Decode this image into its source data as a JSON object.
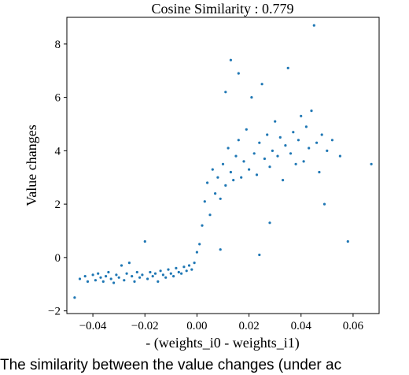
{
  "chart_data": {
    "type": "scatter",
    "title": "Cosine Similarity : 0.779",
    "xlabel": "- (weights_i0 - weights_i1)",
    "ylabel": "Value changes",
    "xlim": [
      -0.05,
      0.07
    ],
    "ylim": [
      -2.1,
      9.0
    ],
    "xticks": [
      -0.04,
      -0.02,
      0.0,
      0.02,
      0.04,
      0.06
    ],
    "xtick_labels": [
      "−0.04",
      "−0.02",
      "0.00",
      "0.02",
      "0.04",
      "0.06"
    ],
    "yticks": [
      -2,
      0,
      2,
      4,
      6,
      8
    ],
    "ytick_labels": [
      "−2",
      "0",
      "2",
      "4",
      "6",
      "8"
    ],
    "grid": false,
    "color": "#1f77b4",
    "series": [
      {
        "points": [
          [
            -0.047,
            -1.5
          ],
          [
            -0.045,
            -0.8
          ],
          [
            -0.043,
            -0.7
          ],
          [
            -0.042,
            -0.9
          ],
          [
            -0.04,
            -0.65
          ],
          [
            -0.039,
            -0.85
          ],
          [
            -0.038,
            -0.6
          ],
          [
            -0.037,
            -0.75
          ],
          [
            -0.036,
            -0.9
          ],
          [
            -0.035,
            -0.7
          ],
          [
            -0.034,
            -0.55
          ],
          [
            -0.033,
            -0.8
          ],
          [
            -0.032,
            -0.95
          ],
          [
            -0.031,
            -0.65
          ],
          [
            -0.03,
            -0.75
          ],
          [
            -0.029,
            -0.3
          ],
          [
            -0.028,
            -0.85
          ],
          [
            -0.027,
            -0.6
          ],
          [
            -0.026,
            -0.2
          ],
          [
            -0.025,
            -0.7
          ],
          [
            -0.024,
            -0.9
          ],
          [
            -0.023,
            -0.55
          ],
          [
            -0.022,
            -0.75
          ],
          [
            -0.021,
            -0.65
          ],
          [
            -0.02,
            0.6
          ],
          [
            -0.019,
            -0.8
          ],
          [
            -0.018,
            -0.55
          ],
          [
            -0.017,
            -0.7
          ],
          [
            -0.016,
            -0.6
          ],
          [
            -0.015,
            -0.9
          ],
          [
            -0.014,
            -0.5
          ],
          [
            -0.013,
            -0.65
          ],
          [
            -0.012,
            -0.75
          ],
          [
            -0.011,
            -0.45
          ],
          [
            -0.01,
            -0.6
          ],
          [
            -0.009,
            -0.7
          ],
          [
            -0.008,
            -0.4
          ],
          [
            -0.007,
            -0.55
          ],
          [
            -0.006,
            -0.6
          ],
          [
            -0.005,
            -0.35
          ],
          [
            -0.004,
            -0.5
          ],
          [
            -0.003,
            -0.3
          ],
          [
            -0.002,
            -0.45
          ],
          [
            -0.001,
            -0.2
          ],
          [
            0.0,
            0.2
          ],
          [
            0.001,
            0.5
          ],
          [
            0.002,
            1.2
          ],
          [
            0.003,
            2.1
          ],
          [
            0.004,
            2.8
          ],
          [
            0.005,
            1.6
          ],
          [
            0.006,
            3.3
          ],
          [
            0.007,
            2.4
          ],
          [
            0.008,
            3.0
          ],
          [
            0.009,
            2.2
          ],
          [
            0.01,
            3.5
          ],
          [
            0.011,
            2.7
          ],
          [
            0.012,
            4.1
          ],
          [
            0.013,
            3.2
          ],
          [
            0.014,
            2.9
          ],
          [
            0.015,
            3.8
          ],
          [
            0.016,
            4.4
          ],
          [
            0.017,
            3.0
          ],
          [
            0.018,
            3.6
          ],
          [
            0.019,
            4.8
          ],
          [
            0.02,
            3.3
          ],
          [
            0.021,
            6.0
          ],
          [
            0.022,
            3.9
          ],
          [
            0.023,
            3.1
          ],
          [
            0.024,
            4.3
          ],
          [
            0.025,
            6.5
          ],
          [
            0.026,
            3.7
          ],
          [
            0.027,
            4.6
          ],
          [
            0.028,
            3.4
          ],
          [
            0.029,
            4.0
          ],
          [
            0.03,
            5.1
          ],
          [
            0.031,
            3.8
          ],
          [
            0.032,
            4.5
          ],
          [
            0.033,
            2.9
          ],
          [
            0.034,
            4.2
          ],
          [
            0.035,
            7.1
          ],
          [
            0.036,
            3.9
          ],
          [
            0.037,
            4.7
          ],
          [
            0.038,
            3.5
          ],
          [
            0.039,
            4.4
          ],
          [
            0.04,
            5.3
          ],
          [
            0.041,
            3.6
          ],
          [
            0.042,
            4.9
          ],
          [
            0.043,
            4.1
          ],
          [
            0.044,
            5.5
          ],
          [
            0.045,
            8.7
          ],
          [
            0.046,
            4.3
          ],
          [
            0.047,
            3.2
          ],
          [
            0.048,
            4.6
          ],
          [
            0.049,
            2.0
          ],
          [
            0.05,
            4.0
          ],
          [
            0.052,
            4.4
          ],
          [
            0.055,
            3.8
          ],
          [
            0.058,
            0.6
          ],
          [
            0.067,
            3.5
          ],
          [
            0.013,
            7.4
          ],
          [
            0.016,
            6.9
          ],
          [
            0.011,
            6.2
          ],
          [
            0.024,
            0.1
          ],
          [
            0.028,
            1.3
          ],
          [
            0.009,
            0.3
          ]
        ]
      }
    ]
  },
  "caption": "The similarity between the value changes (under ac"
}
